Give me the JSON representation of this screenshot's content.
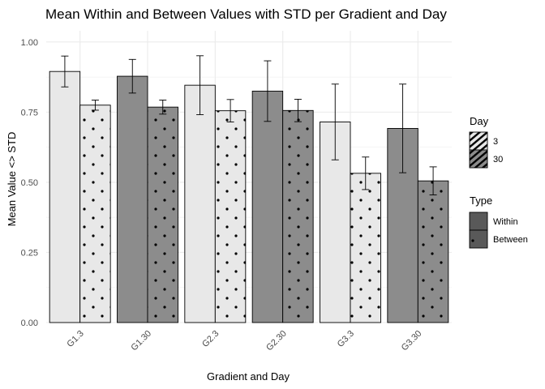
{
  "chart_data": {
    "type": "bar",
    "title": "Mean Within and Between Values with STD per Gradient and Day",
    "xlabel": "Gradient and Day",
    "ylabel": "Mean Value <> STD",
    "ylim": [
      0,
      1.04
    ],
    "yticks": [
      "0.00",
      "0.25",
      "0.50",
      "0.75",
      "1.00"
    ],
    "ytick_values": [
      0,
      0.25,
      0.5,
      0.75,
      1.0
    ],
    "grid": true,
    "categories": [
      "G1.3",
      "G1.30",
      "G2.3",
      "G2.30",
      "G3.3",
      "G3.30"
    ],
    "day_of_category": [
      "3",
      "30",
      "3",
      "30",
      "3",
      "30"
    ],
    "series": [
      {
        "name": "Within",
        "pattern": "none",
        "values": [
          0.895,
          0.878,
          0.846,
          0.825,
          0.715,
          0.692
        ],
        "err": [
          0.055,
          0.06,
          0.105,
          0.108,
          0.135,
          0.158
        ]
      },
      {
        "name": "Between",
        "pattern": "stripe",
        "values": [
          0.775,
          0.768,
          0.755,
          0.756,
          0.532,
          0.505
        ],
        "err": [
          0.018,
          0.025,
          0.04,
          0.04,
          0.058,
          0.05
        ]
      }
    ],
    "day_colors": {
      "3": "#e8e8e8",
      "30": "#8c8c8c"
    },
    "legends": [
      {
        "title": "Day",
        "items": [
          {
            "label": "3",
            "fill": "#e8e8e8"
          },
          {
            "label": "30",
            "fill": "#8c8c8c"
          }
        ]
      },
      {
        "title": "Type",
        "items": [
          {
            "label": "Within"
          },
          {
            "label": "Between"
          }
        ]
      }
    ],
    "legend_position": "right"
  }
}
